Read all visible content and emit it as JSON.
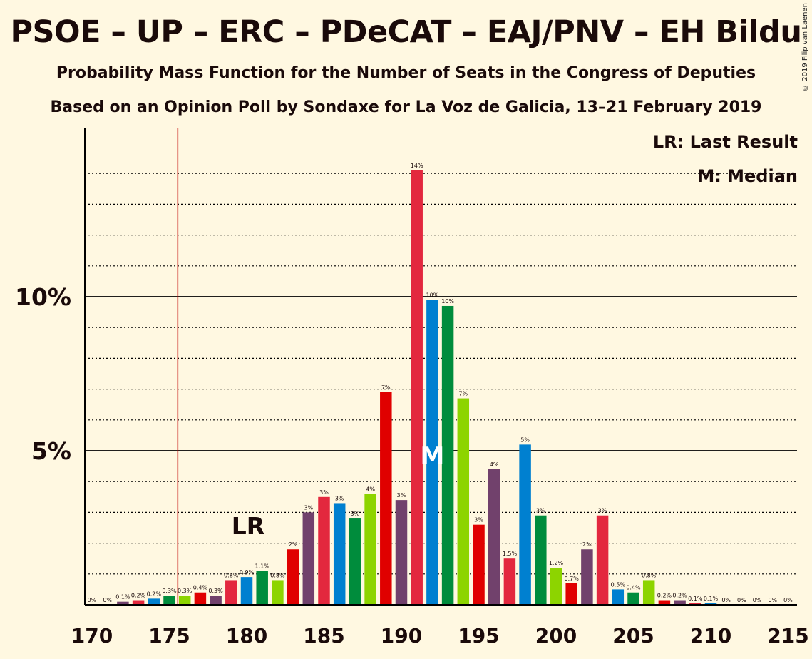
{
  "title": "PSOE – UP – ERC – PDeCAT – EAJ/PNV – EH Bildu",
  "subtitle1": "Probability Mass Function for the Number of Seats in the Congress of Deputies",
  "subtitle2": "Based on an Opinion Poll by Sondaxe for La Voz de Galicia, 13–21 February 2019",
  "copyright": "© 2019 Filip van Laenen",
  "legend": {
    "lr": "LR: Last Result",
    "median": "M: Median"
  },
  "markers": {
    "lr_label": "LR",
    "median_label": "M"
  },
  "colors": {
    "background": "#fff8e1",
    "cycle": [
      "#8dd400",
      "#e00000",
      "#71416c",
      "#e3283e",
      "#0080d0",
      "#008c3c"
    ],
    "last_result_line": "#c00000"
  },
  "chart_data": {
    "type": "bar",
    "x": [
      170,
      171,
      172,
      173,
      174,
      175,
      176,
      177,
      178,
      179,
      180,
      181,
      182,
      183,
      184,
      185,
      186,
      187,
      188,
      189,
      190,
      191,
      192,
      193,
      194,
      195,
      196,
      197,
      198,
      199,
      200,
      201,
      202,
      203,
      204,
      205,
      206,
      207,
      208,
      209,
      210,
      211,
      212,
      213,
      214,
      215
    ],
    "values": [
      0,
      0,
      0.1,
      0.15,
      0.2,
      0.3,
      0.3,
      0.4,
      0.3,
      0.8,
      0.9,
      1.1,
      0.8,
      1.8,
      3.0,
      3.5,
      3.3,
      2.8,
      3.6,
      6.9,
      3.4,
      14.1,
      9.9,
      9.7,
      6.7,
      2.6,
      4.4,
      1.5,
      5.2,
      2.9,
      1.2,
      0.7,
      1.8,
      2.9,
      0.5,
      0.4,
      0.8,
      0.15,
      0.15,
      0.05,
      0.05,
      0,
      0,
      0,
      0,
      0
    ],
    "labels": [
      "0%",
      "0%",
      "0.1%",
      "0.2%",
      "0.2%",
      "0.3%",
      "0.3%",
      "0.4%",
      "0.3%",
      "0.8%",
      "0.9%",
      "1.1%",
      "0.8%",
      "2%",
      "3%",
      "3%",
      "3%",
      "3%",
      "4%",
      "7%",
      "3%",
      "14%",
      "10%",
      "10%",
      "7%",
      "3%",
      "4%",
      "1.5%",
      "5%",
      "3%",
      "1.2%",
      "0.7%",
      "2%",
      "3%",
      "0.5%",
      "0.4%",
      "0.8%",
      "0.2%",
      "0.2%",
      "0.1%",
      "0.1%",
      "0%",
      "0%",
      "0%",
      "0%",
      "0%"
    ],
    "xlim": [
      170,
      215
    ],
    "ylim": [
      0,
      15
    ],
    "y_ticks": [
      {
        "value": 5,
        "label": "5%"
      },
      {
        "value": 10,
        "label": "10%"
      }
    ],
    "x_ticks": [
      170,
      175,
      180,
      185,
      190,
      195,
      200,
      205,
      210,
      215
    ],
    "last_result": 176,
    "median": 192,
    "gridlines": "dotted every 1%, solid at 5% and 10%"
  }
}
